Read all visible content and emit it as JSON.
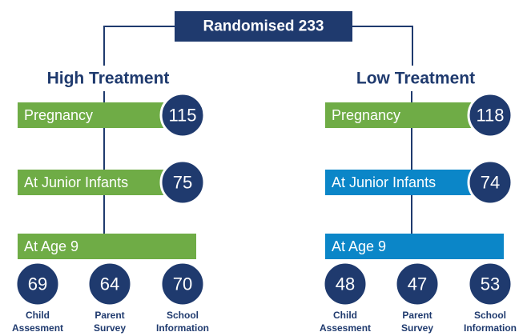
{
  "top": {
    "label": "Randomised 233"
  },
  "arms": [
    {
      "title": "High Treatment",
      "stages": [
        {
          "label": "Pregnancy",
          "n": "115",
          "color": "#6fac46"
        },
        {
          "label": "At Junior Infants",
          "n": "75",
          "color": "#6fac46"
        },
        {
          "label": "At Age 9",
          "color": "#6fac46"
        }
      ],
      "outcomes": [
        {
          "lines": [
            "Child",
            "Assesment"
          ],
          "n": "69"
        },
        {
          "lines": [
            "Parent",
            "Survey"
          ],
          "n": "64"
        },
        {
          "lines": [
            "School",
            "Information"
          ],
          "n": "70"
        }
      ]
    },
    {
      "title": "Low Treatment",
      "stages": [
        {
          "label": "Pregnancy",
          "n": "118",
          "color": "#6fac46"
        },
        {
          "label": "At Junior Infants",
          "n": "74",
          "color": "#0b86c8"
        },
        {
          "label": "At Age 9",
          "color": "#0b86c8"
        }
      ],
      "outcomes": [
        {
          "lines": [
            "Child",
            "Assesment"
          ],
          "n": "48"
        },
        {
          "lines": [
            "Parent",
            "Survey"
          ],
          "n": "47"
        },
        {
          "lines": [
            "School",
            "Information"
          ],
          "n": "53"
        }
      ]
    }
  ]
}
